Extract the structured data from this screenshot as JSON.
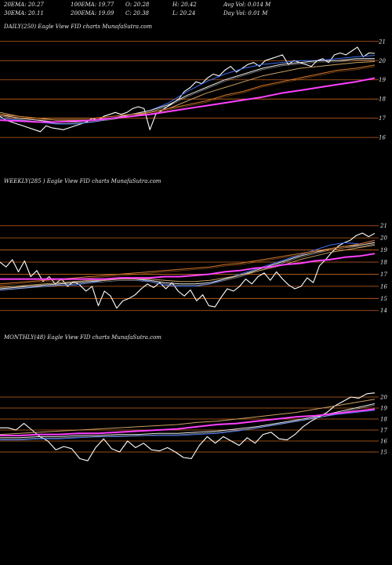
{
  "header": {
    "rows": [
      [
        "20EMA: 20.27",
        "100EMA: 19.77",
        "O: 20.28",
        "H: 20.42",
        "Avg Vol: 0.014  M"
      ],
      [
        "30EMA: 20.11",
        "200EMA: 19.09",
        "C: 20.38",
        "L: 20.24",
        "Day Vol: 0.01  M"
      ]
    ]
  },
  "colors": {
    "background": "#000000",
    "gridline": "#c8641e",
    "price": "#ffffff",
    "ema_blue": "#3c6ef0",
    "ema_magenta": "#ff40ff",
    "ema_white": "#e6e6e6",
    "ema_tan": "#c8a064",
    "ema_orange": "#d47828"
  },
  "chart_data": [
    {
      "type": "line",
      "panel": "daily",
      "title": "DAILY(250) Eagle  View  FID charts MunafaSutra.com",
      "y_ticks": [
        21,
        20,
        19,
        18,
        17,
        16
      ],
      "ylim": [
        15.8,
        21.4
      ],
      "grid": true,
      "series": [
        {
          "role": "price",
          "values": [
            17.1,
            16.9,
            16.8,
            16.7,
            16.6,
            16.5,
            16.4,
            16.3,
            16.6,
            16.5,
            16.45,
            16.4,
            16.5,
            16.6,
            16.7,
            16.8,
            17.0,
            16.9,
            17.1,
            17.2,
            17.3,
            17.2,
            17.3,
            17.5,
            17.6,
            17.5,
            16.4,
            17.2,
            17.4,
            17.6,
            17.8,
            18.0,
            18.4,
            18.6,
            18.9,
            18.8,
            19.1,
            19.3,
            19.2,
            19.5,
            19.7,
            19.4,
            19.6,
            19.8,
            19.9,
            19.7,
            20.0,
            20.1,
            20.2,
            20.3,
            19.8,
            20.0,
            19.9,
            19.8,
            19.7,
            20.0,
            20.1,
            19.9,
            20.3,
            20.4,
            20.3,
            20.5,
            20.7,
            20.2,
            20.4,
            20.38
          ]
        },
        {
          "role": "ema",
          "color": "#3c6ef0",
          "values": [
            17.0,
            16.9,
            16.8,
            16.7,
            16.7,
            16.8,
            17.0,
            17.2,
            17.4,
            17.8,
            18.4,
            18.9,
            19.3,
            19.6,
            19.8,
            19.9,
            20.0,
            20.0,
            20.1,
            20.2,
            20.27
          ]
        },
        {
          "role": "ema",
          "color": "#e6e6e6",
          "values": [
            17.2,
            17.0,
            16.9,
            16.8,
            16.8,
            16.9,
            17.0,
            17.2,
            17.4,
            17.7,
            18.2,
            18.6,
            19.0,
            19.3,
            19.6,
            19.8,
            19.9,
            20.0,
            20.0,
            20.1,
            20.11
          ]
        },
        {
          "role": "ema",
          "color": "#c8a064",
          "values": [
            17.3,
            17.1,
            17.0,
            16.9,
            16.9,
            16.9,
            17.0,
            17.1,
            17.3,
            17.5,
            17.9,
            18.3,
            18.6,
            18.9,
            19.2,
            19.4,
            19.6,
            19.7,
            19.8,
            19.9,
            19.95
          ]
        },
        {
          "role": "ema",
          "color": "#d47828",
          "values": [
            17.2,
            17.1,
            17.0,
            17.0,
            17.0,
            17.0,
            17.1,
            17.2,
            17.3,
            17.5,
            17.7,
            17.9,
            18.2,
            18.4,
            18.7,
            18.9,
            19.1,
            19.3,
            19.5,
            19.6,
            19.77
          ]
        },
        {
          "role": "ema",
          "color": "#ff40ff",
          "values": [
            16.9,
            16.85,
            16.8,
            16.8,
            16.85,
            16.9,
            17.0,
            17.1,
            17.2,
            17.35,
            17.5,
            17.65,
            17.8,
            17.95,
            18.1,
            18.3,
            18.45,
            18.6,
            18.75,
            18.9,
            19.09
          ]
        }
      ]
    },
    {
      "type": "line",
      "panel": "weekly",
      "title": "WEEKLY(285                          ) Eagle   View  FID charts MunafaSutra.com",
      "y_ticks": [
        21,
        20,
        19,
        18,
        17,
        16,
        15,
        14
      ],
      "ylim": [
        13.4,
        21.5
      ],
      "grid": true,
      "series": [
        {
          "role": "price",
          "values": [
            18.0,
            17.6,
            18.2,
            17.2,
            18.1,
            16.8,
            17.3,
            16.4,
            16.8,
            16.2,
            16.6,
            16.0,
            16.4,
            16.1,
            15.6,
            16.0,
            14.4,
            15.6,
            15.2,
            14.2,
            14.8,
            15.0,
            15.3,
            15.8,
            16.2,
            15.9,
            16.3,
            15.8,
            16.3,
            15.6,
            15.2,
            15.7,
            14.8,
            15.3,
            14.4,
            14.3,
            15.1,
            15.8,
            15.6,
            16.0,
            16.6,
            16.2,
            16.8,
            17.1,
            16.5,
            17.2,
            16.6,
            16.1,
            15.8,
            16.0,
            16.7,
            16.3,
            17.7,
            18.2,
            18.8,
            19.3,
            19.6,
            19.8,
            20.2,
            20.4,
            20.1,
            20.38
          ]
        },
        {
          "role": "ema",
          "color": "#3c6ef0",
          "values": [
            15.7,
            15.8,
            15.9,
            16.0,
            16.1,
            16.1,
            16.3,
            16.5,
            16.7,
            16.6,
            16.4,
            16.1,
            16.0,
            16.0,
            16.2,
            16.6,
            17.0,
            17.4,
            17.8,
            18.2,
            18.6,
            19.0,
            19.4,
            19.6,
            19.5,
            19.8
          ]
        },
        {
          "role": "ema",
          "color": "#e6e6e6",
          "values": [
            15.8,
            15.9,
            16.0,
            16.1,
            16.2,
            16.3,
            16.4,
            16.5,
            16.6,
            16.6,
            16.5,
            16.3,
            16.2,
            16.2,
            16.3,
            16.6,
            16.9,
            17.3,
            17.7,
            18.1,
            18.5,
            18.8,
            19.1,
            19.3,
            19.4,
            19.6
          ]
        },
        {
          "role": "ema",
          "color": "#c8a064",
          "values": [
            15.9,
            16.0,
            16.1,
            16.2,
            16.3,
            16.4,
            16.5,
            16.5,
            16.6,
            16.6,
            16.6,
            16.5,
            16.4,
            16.4,
            16.5,
            16.7,
            16.9,
            17.2,
            17.5,
            17.8,
            18.2,
            18.5,
            18.8,
            19.0,
            19.2,
            19.4
          ]
        },
        {
          "role": "ema",
          "color": "#d47828",
          "values": [
            16.2,
            16.3,
            16.4,
            16.5,
            16.6,
            16.7,
            16.8,
            16.9,
            17.0,
            17.1,
            17.2,
            17.3,
            17.4,
            17.5,
            17.6,
            17.8,
            17.9,
            18.1,
            18.3,
            18.5,
            18.7,
            18.9,
            19.1,
            19.3,
            19.5,
            19.8
          ]
        },
        {
          "role": "ema",
          "color": "#ff40ff",
          "values": [
            16.6,
            16.6,
            16.6,
            16.6,
            16.6,
            16.6,
            16.6,
            16.6,
            16.7,
            16.7,
            16.7,
            16.8,
            16.8,
            16.9,
            17.0,
            17.2,
            17.3,
            17.5,
            17.6,
            17.8,
            17.9,
            18.1,
            18.2,
            18.4,
            18.5,
            18.7
          ]
        }
      ]
    },
    {
      "type": "line",
      "panel": "monthly",
      "title": "MONTHLY(48) Eagle   View  FID charts MunafaSutra.com",
      "y_ticks": [
        20,
        19,
        18,
        17,
        16,
        15
      ],
      "ylim": [
        14.0,
        21.5
      ],
      "grid": true,
      "series": [
        {
          "role": "price",
          "values": [
            17.2,
            17.2,
            17.0,
            17.6,
            17.0,
            16.4,
            16.0,
            15.2,
            15.5,
            15.3,
            14.4,
            14.2,
            15.4,
            16.2,
            15.3,
            15.0,
            16.0,
            15.4,
            15.8,
            15.2,
            15.1,
            15.4,
            15.0,
            14.5,
            14.4,
            15.6,
            16.4,
            15.8,
            16.4,
            16.0,
            15.6,
            16.3,
            15.8,
            16.6,
            16.8,
            16.2,
            16.1,
            16.6,
            17.3,
            17.8,
            18.2,
            18.6,
            19.2,
            19.6,
            20.0,
            19.9,
            20.3,
            20.38
          ]
        },
        {
          "role": "ema",
          "color": "#3c6ef0",
          "values": [
            16.1,
            16.1,
            16.2,
            16.2,
            16.3,
            16.4,
            16.4,
            16.5,
            16.5,
            16.5,
            16.6,
            16.7,
            16.9,
            17.2,
            17.5,
            17.8,
            18.1,
            18.4,
            18.6,
            18.8
          ]
        },
        {
          "role": "ema",
          "color": "#e6e6e6",
          "values": [
            16.3,
            16.3,
            16.4,
            16.4,
            16.5,
            16.5,
            16.6,
            16.6,
            16.7,
            16.7,
            16.8,
            16.9,
            17.1,
            17.3,
            17.6,
            17.9,
            18.2,
            18.6,
            19.0,
            19.4
          ]
        },
        {
          "role": "ema",
          "color": "#c8a064",
          "values": [
            16.6,
            16.7,
            16.8,
            16.9,
            17.0,
            17.1,
            17.2,
            17.3,
            17.4,
            17.5,
            17.7,
            17.8,
            18.0,
            18.2,
            18.4,
            18.6,
            18.9,
            19.2,
            19.5,
            19.8
          ]
        },
        {
          "role": "ema",
          "color": "#ff40ff",
          "values": [
            16.5,
            16.5,
            16.6,
            16.6,
            16.7,
            16.7,
            16.8,
            16.9,
            17.0,
            17.1,
            17.3,
            17.5,
            17.6,
            17.8,
            18.0,
            18.2,
            18.3,
            18.5,
            18.7,
            18.9
          ]
        }
      ]
    }
  ]
}
